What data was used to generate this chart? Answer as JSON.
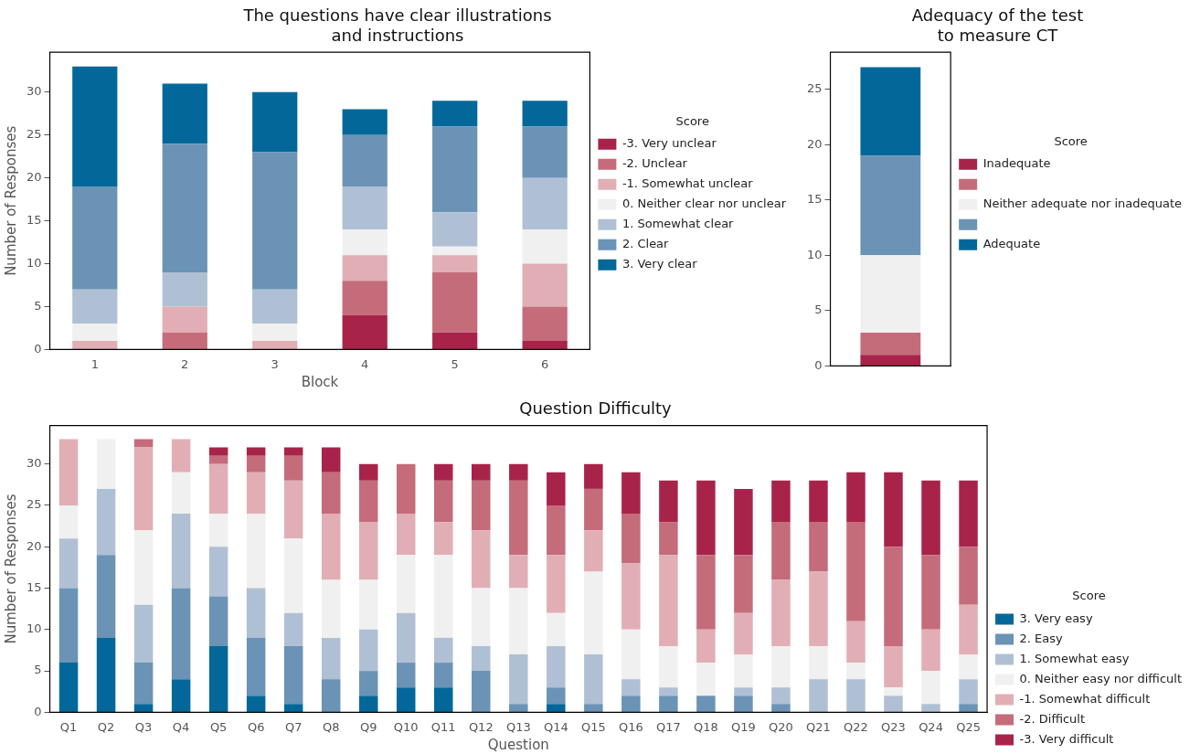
{
  "chart_data": [
    {
      "type": "bar",
      "title": "The questions have clear illustrations and instructions",
      "xlabel": "Block",
      "ylabel": "Number of Responses",
      "categories": [
        "1",
        "2",
        "3",
        "4",
        "5",
        "6"
      ],
      "stacked": true,
      "ylim": [
        0,
        34.65
      ],
      "yticks": [
        0,
        5,
        10,
        15,
        20,
        25,
        30
      ],
      "grid": false,
      "legend": "right",
      "legend_title": "Score",
      "series": [
        {
          "name": "-3. Very unclear",
          "color": "#a8234a",
          "values": [
            0,
            0,
            0,
            4,
            2,
            1
          ]
        },
        {
          "name": "-2. Unclear",
          "color": "#c46c7a",
          "values": [
            0,
            2,
            0,
            4,
            7,
            4
          ]
        },
        {
          "name": "-1. Somewhat unclear",
          "color": "#e1aeb5",
          "values": [
            1,
            3,
            1,
            3,
            2,
            5
          ]
        },
        {
          "name": "0. Neither clear nor unclear",
          "color": "#f0f0f0",
          "values": [
            2,
            0,
            2,
            3,
            1,
            4
          ]
        },
        {
          "name": "1. Somewhat clear",
          "color": "#b0c0d4",
          "values": [
            4,
            4,
            4,
            5,
            4,
            6
          ]
        },
        {
          "name": "2. Clear",
          "color": "#6a93b6",
          "values": [
            12,
            15,
            16,
            6,
            10,
            6
          ]
        },
        {
          "name": "3. Very clear",
          "color": "#036899",
          "values": [
            14,
            7,
            7,
            3,
            3,
            3
          ]
        }
      ]
    },
    {
      "type": "bar",
      "title": "Adequacy of the test to measure CT",
      "categories": [
        null
      ],
      "stacked": true,
      "ylim": [
        0,
        28.35
      ],
      "yticks": [
        0,
        5,
        10,
        15,
        20,
        25
      ],
      "grid": false,
      "legend": "right",
      "legend_title": "Score",
      "series": [
        {
          "name": "Inadequate",
          "color": "#a8234a",
          "values": [
            1
          ]
        },
        {
          "color": "#c46c7a",
          "values": [
            2
          ]
        },
        {
          "name": "Neither adequate nor inadequate",
          "color": "#f0f0f0",
          "values": [
            7
          ]
        },
        {
          "color": "#6a93b6",
          "values": [
            9
          ]
        },
        {
          "name": "Adequate",
          "color": "#036899",
          "values": [
            8
          ]
        }
      ]
    },
    {
      "type": "bar",
      "title": "Question Difficulty",
      "xlabel": "Question",
      "ylabel": "Number of Responses",
      "categories": [
        "Q1",
        "Q2",
        "Q3",
        "Q4",
        "Q5",
        "Q6",
        "Q7",
        "Q8",
        "Q9",
        "Q10",
        "Q11",
        "Q12",
        "Q13",
        "Q14",
        "Q15",
        "Q16",
        "Q17",
        "Q18",
        "Q19",
        "Q20",
        "Q21",
        "Q22",
        "Q23",
        "Q24",
        "Q25"
      ],
      "stacked": true,
      "ylim": [
        0,
        34.65
      ],
      "yticks": [
        0,
        5,
        10,
        15,
        20,
        25,
        30
      ],
      "grid": false,
      "legend": "bottom right",
      "legend_title": "Score",
      "series": [
        {
          "name": "3. Very easy",
          "color": "#036899",
          "values": [
            6,
            9,
            1,
            4,
            8,
            2,
            1,
            0,
            2,
            3,
            3,
            0,
            0,
            1,
            0,
            0,
            0,
            0,
            0,
            0,
            0,
            0,
            0,
            0,
            0
          ]
        },
        {
          "name": "2. Easy",
          "color": "#6a93b6",
          "values": [
            9,
            10,
            5,
            11,
            6,
            7,
            7,
            4,
            3,
            3,
            3,
            5,
            1,
            2,
            1,
            2,
            2,
            2,
            2,
            1,
            0,
            0,
            0,
            0,
            1
          ]
        },
        {
          "name": "1. Somewhat easy",
          "color": "#b0c0d4",
          "values": [
            6,
            8,
            7,
            9,
            6,
            6,
            4,
            5,
            5,
            6,
            3,
            3,
            6,
            5,
            6,
            2,
            1,
            0,
            1,
            2,
            4,
            4,
            2,
            1,
            3
          ]
        },
        {
          "name": "0. Neither easy nor difficult",
          "color": "#f0f0f0",
          "values": [
            4,
            6,
            9,
            5,
            4,
            9,
            9,
            7,
            6,
            7,
            10,
            7,
            8,
            4,
            10,
            6,
            5,
            4,
            4,
            5,
            4,
            2,
            1,
            4,
            3
          ]
        },
        {
          "name": "-1. Somewhat difficult",
          "color": "#e1aeb5",
          "values": [
            8,
            0,
            10,
            4,
            6,
            5,
            7,
            8,
            7,
            5,
            4,
            7,
            4,
            7,
            5,
            8,
            11,
            4,
            5,
            8,
            9,
            5,
            5,
            5,
            6
          ]
        },
        {
          "name": "-2. Difficult",
          "color": "#c46c7a",
          "values": [
            0,
            0,
            1,
            0,
            1,
            2,
            3,
            5,
            5,
            6,
            5,
            6,
            9,
            6,
            5,
            6,
            4,
            9,
            7,
            7,
            6,
            12,
            12,
            9,
            7
          ]
        },
        {
          "name": "-3. Very difficult",
          "color": "#a8234a",
          "values": [
            0,
            0,
            0,
            0,
            1,
            1,
            1,
            3,
            2,
            0,
            2,
            2,
            2,
            4,
            3,
            5,
            5,
            9,
            8,
            5,
            5,
            6,
            9,
            9,
            8
          ]
        }
      ]
    }
  ]
}
